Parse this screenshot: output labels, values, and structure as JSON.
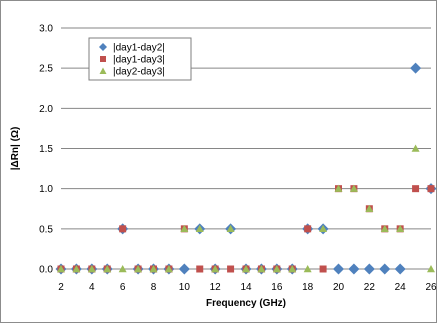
{
  "chart_data": {
    "type": "scatter",
    "xlabel": "Frequency (GHz)",
    "ylabel": "|ΔRn| (Ω)",
    "xlim": [
      2,
      26
    ],
    "ylim": [
      0,
      3
    ],
    "x_ticks": [
      "2",
      "4",
      "6",
      "8",
      "10",
      "12",
      "14",
      "16",
      "18",
      "20",
      "22",
      "24",
      "26"
    ],
    "y_ticks": [
      "0.0",
      "0.5",
      "1.0",
      "1.5",
      "2.0",
      "2.5",
      "3.0"
    ],
    "grid": "horizontal major",
    "legend_position": "top-left",
    "x": [
      2,
      3,
      4,
      5,
      6,
      7,
      8,
      9,
      10,
      11,
      12,
      13,
      14,
      15,
      16,
      17,
      18,
      19,
      20,
      21,
      22,
      23,
      24,
      25,
      26
    ],
    "series": [
      {
        "name": "|day1-day2|",
        "marker": "diamond",
        "color": "#4f81bd",
        "values": [
          0,
          0,
          0,
          0,
          0.5,
          0,
          0,
          0,
          0,
          0.5,
          0,
          0.5,
          0,
          0,
          0,
          0,
          0.5,
          0.5,
          0,
          0,
          0,
          0,
          0,
          2.5,
          1.0
        ]
      },
      {
        "name": "|day1-day3|",
        "marker": "square",
        "color": "#c0504d",
        "values": [
          0,
          0,
          0,
          0,
          0.5,
          0,
          0,
          0,
          0.5,
          0,
          0,
          0,
          0,
          0,
          0,
          0,
          0.5,
          0,
          1.0,
          1.0,
          0.75,
          0.5,
          0.5,
          1.0,
          1.0
        ]
      },
      {
        "name": "|day2-day3|",
        "marker": "triangle",
        "color": "#9bbb59",
        "values": [
          0,
          0,
          0,
          0,
          0,
          0,
          0,
          0,
          0.5,
          0.5,
          0,
          0.5,
          0,
          0,
          0,
          0,
          0,
          0.5,
          1.0,
          1.0,
          0.75,
          0.5,
          0.5,
          1.5,
          0
        ]
      }
    ]
  }
}
